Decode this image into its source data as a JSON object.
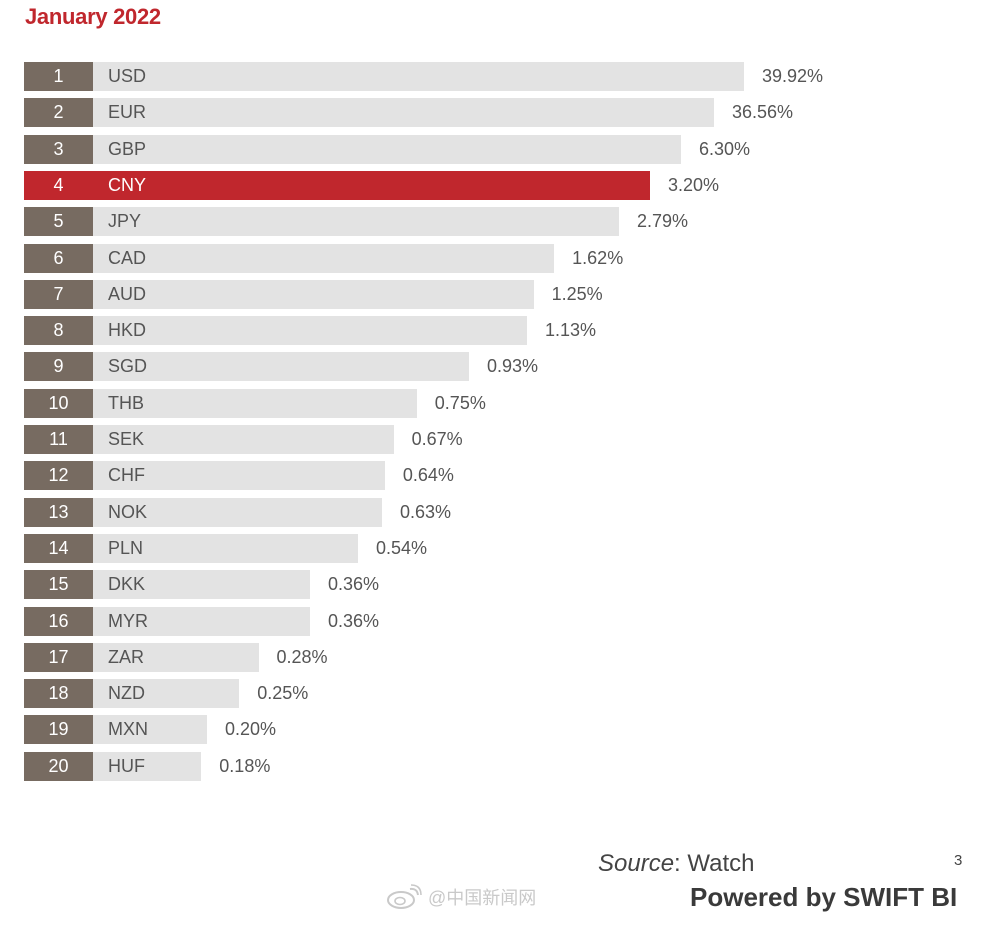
{
  "title": "January 2022",
  "chart_data": {
    "type": "bar",
    "orientation": "horizontal",
    "title": "January 2022",
    "ranks": [
      "1",
      "2",
      "3",
      "4",
      "5",
      "6",
      "7",
      "8",
      "9",
      "10",
      "11",
      "12",
      "13",
      "14",
      "15",
      "16",
      "17",
      "18",
      "19",
      "20"
    ],
    "categories": [
      "USD",
      "EUR",
      "GBP",
      "CNY",
      "JPY",
      "CAD",
      "AUD",
      "HKD",
      "SGD",
      "THB",
      "SEK",
      "CHF",
      "NOK",
      "PLN",
      "DKK",
      "MYR",
      "ZAR",
      "NZD",
      "MXN",
      "HUF"
    ],
    "values": [
      39.92,
      36.56,
      6.3,
      3.2,
      2.79,
      1.62,
      1.25,
      1.13,
      0.93,
      0.75,
      0.67,
      0.64,
      0.63,
      0.54,
      0.36,
      0.36,
      0.28,
      0.25,
      0.2,
      0.18
    ],
    "labels": [
      "39.92%",
      "36.56%",
      "6.30%",
      "3.20%",
      "2.79%",
      "1.62%",
      "1.25%",
      "1.13%",
      "0.93%",
      "0.75%",
      "0.67%",
      "0.64%",
      "0.63%",
      "0.54%",
      "0.36%",
      "0.36%",
      "0.28%",
      "0.25%",
      "0.20%",
      "0.18%"
    ],
    "highlight": "CNY",
    "xlabel": "",
    "ylabel": ""
  },
  "colors": {
    "highlight": "#c0272d",
    "rank_bg": "#776b61",
    "bar_bg": "#e3e3e3",
    "text": "#555555"
  },
  "footer": {
    "source_label": "Source",
    "source_value": ": Watch",
    "page_number": "3",
    "powered_by": "Powered by SWIFT BI",
    "watermark_text": "@中国新闻网",
    "watermark_icon": "weibo-icon"
  }
}
